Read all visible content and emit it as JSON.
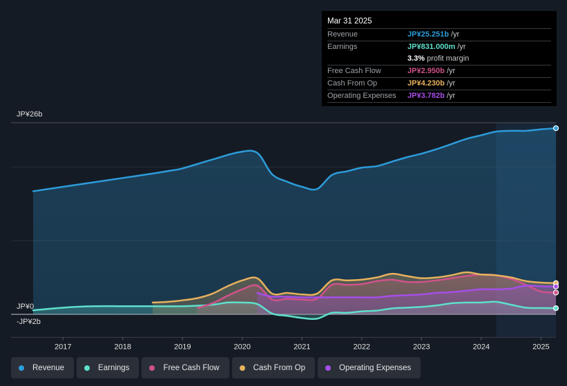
{
  "tooltip": {
    "date": "Mar 31 2025",
    "rows": [
      {
        "label": "Revenue",
        "value": "JP¥25.251b",
        "unit": " /yr",
        "color": "#2d9cdb"
      },
      {
        "label": "Earnings",
        "value": "JP¥831.000m",
        "unit": " /yr",
        "color": "#5ee0cc"
      },
      {
        "label": "",
        "value": "3.3%",
        "unit": " profit margin",
        "color": "#ffffff"
      },
      {
        "label": "Free Cash Flow",
        "value": "JP¥2.950b",
        "unit": " /yr",
        "color": "#d0528a"
      },
      {
        "label": "Cash From Op",
        "value": "JP¥4.230b",
        "unit": " /yr",
        "color": "#e8b15e"
      },
      {
        "label": "Operating Expenses",
        "value": "JP¥3.782b",
        "unit": " /yr",
        "color": "#a64ee8"
      }
    ]
  },
  "legend": [
    {
      "label": "Revenue",
      "color": "#2d9cdb"
    },
    {
      "label": "Earnings",
      "color": "#5ee0cc"
    },
    {
      "label": "Free Cash Flow",
      "color": "#d0528a"
    },
    {
      "label": "Cash From Op",
      "color": "#e8b15e"
    },
    {
      "label": "Operating Expenses",
      "color": "#a64ee8"
    }
  ],
  "chart_data": {
    "type": "area",
    "title": "",
    "xlabel": "",
    "ylabel": "",
    "y_unit": "JP¥ billions",
    "ylim": [
      -2,
      26
    ],
    "y_tick_labels": [
      {
        "value": 26,
        "label": "JP¥26b"
      },
      {
        "value": 0,
        "label": "JP¥0"
      },
      {
        "value": -2,
        "label": "-JP¥2b"
      }
    ],
    "gridlines": [
      26,
      20,
      10,
      0
    ],
    "xlim": [
      2016.5,
      2025.25
    ],
    "x_ticks": [
      2017,
      2018,
      2019,
      2020,
      2021,
      2022,
      2023,
      2024,
      2025
    ],
    "x_tick_labels": [
      "2017",
      "2018",
      "2019",
      "2020",
      "2021",
      "2022",
      "2023",
      "2024",
      "2025"
    ],
    "highlight_range": [
      2024.25,
      2025.25
    ],
    "legend_position": "bottom",
    "series": [
      {
        "name": "Revenue",
        "color": "#2d9cdb",
        "x": [
          2016.5,
          2017.0,
          2017.5,
          2018.0,
          2018.5,
          2018.8,
          2019.0,
          2019.5,
          2019.95,
          2020.25,
          2020.5,
          2020.75,
          2021.0,
          2021.25,
          2021.5,
          2021.75,
          2022.0,
          2022.25,
          2022.5,
          2022.75,
          2023.0,
          2023.25,
          2023.5,
          2023.75,
          2024.0,
          2024.25,
          2024.5,
          2024.75,
          2025.0,
          2025.25
        ],
        "values": [
          16.7,
          17.3,
          17.9,
          18.5,
          19.1,
          19.5,
          19.8,
          21.0,
          22.0,
          21.9,
          19.0,
          18.0,
          17.3,
          17.0,
          18.9,
          19.4,
          19.9,
          20.1,
          20.7,
          21.3,
          21.8,
          22.4,
          23.1,
          23.8,
          24.3,
          24.8,
          24.9,
          24.9,
          25.1,
          25.25
        ]
      },
      {
        "name": "Earnings",
        "color": "#5ee0cc",
        "x": [
          2016.5,
          2017.0,
          2017.5,
          2018.0,
          2018.5,
          2019.0,
          2019.5,
          2019.75,
          2020.0,
          2020.25,
          2020.5,
          2020.75,
          2021.0,
          2021.25,
          2021.5,
          2021.75,
          2022.0,
          2022.25,
          2022.5,
          2022.75,
          2023.0,
          2023.25,
          2023.5,
          2023.75,
          2024.0,
          2024.25,
          2024.5,
          2024.75,
          2025.0,
          2025.25
        ],
        "values": [
          0.55,
          0.9,
          1.1,
          1.1,
          1.1,
          1.1,
          1.3,
          1.6,
          1.6,
          1.4,
          0.1,
          -0.2,
          -0.5,
          -0.6,
          0.2,
          0.2,
          0.4,
          0.5,
          0.8,
          0.9,
          1.0,
          1.2,
          1.5,
          1.6,
          1.6,
          1.7,
          1.3,
          0.9,
          0.85,
          0.83
        ]
      },
      {
        "name": "Free Cash Flow",
        "color": "#d0528a",
        "x": [
          2019.25,
          2019.5,
          2019.75,
          2020.0,
          2020.25,
          2020.5,
          2020.75,
          2021.0,
          2021.25,
          2021.5,
          2021.75,
          2022.0,
          2022.25,
          2022.5,
          2022.75,
          2023.0,
          2023.25,
          2023.5,
          2023.75,
          2024.0,
          2024.25,
          2024.5,
          2024.75,
          2025.0,
          2025.25
        ],
        "values": [
          0.85,
          1.5,
          2.5,
          3.4,
          3.9,
          2.0,
          2.1,
          2.0,
          2.1,
          4.0,
          4.0,
          4.1,
          4.5,
          4.7,
          4.4,
          4.4,
          4.6,
          4.9,
          5.2,
          5.4,
          5.3,
          4.8,
          4.0,
          3.1,
          2.95
        ]
      },
      {
        "name": "Cash From Op",
        "color": "#e8b15e",
        "x": [
          2018.5,
          2018.75,
          2019.0,
          2019.25,
          2019.5,
          2019.75,
          2020.0,
          2020.25,
          2020.5,
          2020.75,
          2021.0,
          2021.25,
          2021.5,
          2021.75,
          2022.0,
          2022.25,
          2022.5,
          2022.75,
          2023.0,
          2023.25,
          2023.5,
          2023.75,
          2024.0,
          2024.25,
          2024.5,
          2024.75,
          2025.0,
          2025.25
        ],
        "values": [
          1.6,
          1.7,
          1.9,
          2.2,
          2.8,
          3.8,
          4.6,
          4.9,
          2.8,
          2.9,
          2.7,
          2.8,
          4.6,
          4.6,
          4.7,
          5.0,
          5.5,
          5.2,
          4.9,
          5.0,
          5.3,
          5.7,
          5.4,
          5.3,
          5.0,
          4.5,
          4.3,
          4.23
        ]
      },
      {
        "name": "Operating Expenses",
        "color": "#a64ee8",
        "x": [
          2020.25,
          2020.5,
          2020.75,
          2021.0,
          2021.25,
          2021.5,
          2021.75,
          2022.0,
          2022.25,
          2022.5,
          2022.75,
          2023.0,
          2023.25,
          2023.5,
          2023.75,
          2024.0,
          2024.25,
          2024.5,
          2024.75,
          2025.0,
          2025.25
        ],
        "values": [
          2.9,
          2.4,
          2.4,
          2.3,
          2.3,
          2.3,
          2.3,
          2.3,
          2.3,
          2.5,
          2.6,
          2.7,
          2.9,
          3.0,
          3.2,
          3.4,
          3.4,
          3.5,
          3.9,
          3.8,
          3.78
        ]
      }
    ]
  }
}
